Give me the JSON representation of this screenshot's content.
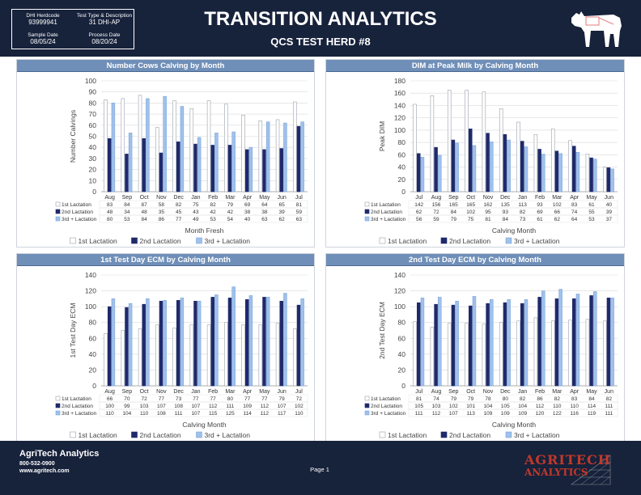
{
  "header": {
    "title": "TRANSITION ANALYTICS",
    "subtitle": "QCS TEST HERD #8",
    "herdcode_label": "DHI Herdcode",
    "herdcode": "93999941",
    "test_type_label": "Test Type & Description",
    "test_type": "31 DHI-AP",
    "sample_date_label": "Sample Date",
    "sample_date": "08/05/24",
    "process_date_label": "Process Date",
    "process_date": "08/20/24"
  },
  "footer": {
    "company": "AgriTech Analytics",
    "phone": "800-532-0900",
    "website": "www.agritech.com",
    "page": "Page 1",
    "logo_top": "AGRITECH",
    "logo_bottom": "ANALYTICS"
  },
  "colors": {
    "first": "#ffffff",
    "second": "#1f2a6b",
    "third": "#9fc1ec",
    "header_bg": "#17223b",
    "panel_title": "#6f8fb8"
  },
  "chart_data": [
    {
      "type": "bar",
      "title": "Number Cows Calving by Month",
      "xlabel": "Month Fresh",
      "ylabel": "Number Calvings",
      "ylim": [
        0,
        100
      ],
      "ytick_step": 10,
      "categories": [
        "Aug",
        "Sep",
        "Oct",
        "Nov",
        "Dec",
        "Jan",
        "Feb",
        "Mar",
        "Apr",
        "May",
        "Jun",
        "Jul"
      ],
      "series": [
        {
          "name": "1st Lactation",
          "values": [
            83,
            84,
            87,
            58,
            82,
            75,
            82,
            79,
            69,
            64,
            65,
            81
          ]
        },
        {
          "name": "2nd Lactation",
          "values": [
            48,
            34,
            48,
            35,
            45,
            43,
            42,
            42,
            38,
            38,
            39,
            59
          ]
        },
        {
          "name": "3rd + Lactation",
          "values": [
            80,
            53,
            84,
            86,
            77,
            49,
            53,
            54,
            40,
            63,
            62,
            63
          ]
        }
      ],
      "legend": "bottom",
      "grid": true
    },
    {
      "type": "bar",
      "title": "DIM at Peak Milk by Calving Month",
      "xlabel": "Calving Month",
      "ylabel": "Peak DIM",
      "ylim": [
        0,
        180
      ],
      "ytick_step": 20,
      "categories": [
        "Jul",
        "Aug",
        "Sep",
        "Oct",
        "Nov",
        "Dec",
        "Jan",
        "Feb",
        "Mar",
        "Apr",
        "May",
        "Jun"
      ],
      "series": [
        {
          "name": "1st Lactation",
          "values": [
            142,
            156,
            165,
            165,
            162,
            135,
            113,
            93,
            102,
            83,
            61,
            40
          ]
        },
        {
          "name": "2nd Lactation",
          "values": [
            62,
            72,
            84,
            102,
            95,
            93,
            82,
            69,
            66,
            74,
            55,
            39
          ]
        },
        {
          "name": "3rd + Lactation",
          "values": [
            56,
            59,
            79,
            75,
            81,
            84,
            73,
            61,
            62,
            64,
            53,
            37
          ]
        }
      ],
      "legend": "bottom",
      "grid": true
    },
    {
      "type": "bar",
      "title": "1st Test Day ECM by Calving Month",
      "xlabel": "Calving Month",
      "ylabel": "1st Test Day ECM",
      "ylim": [
        0,
        140
      ],
      "ytick_step": 20,
      "categories": [
        "Aug",
        "Sep",
        "Oct",
        "Nov",
        "Dec",
        "Jan",
        "Feb",
        "Mar",
        "Apr",
        "May",
        "Jun",
        "Jul"
      ],
      "series": [
        {
          "name": "1st Lactation",
          "values": [
            66,
            70,
            72,
            77,
            73,
            77,
            77,
            80,
            77,
            77,
            79,
            72
          ]
        },
        {
          "name": "2nd Lactation",
          "values": [
            100,
            99,
            103,
            107,
            108,
            107,
            112,
            111,
            109,
            112,
            107,
            102
          ]
        },
        {
          "name": "3rd + Lactation",
          "values": [
            110,
            104,
            110,
            108,
            111,
            107,
            115,
            125,
            114,
            112,
            117,
            110
          ]
        }
      ],
      "legend": "bottom",
      "grid": true
    },
    {
      "type": "bar",
      "title": "2nd Test Day ECM by Calving Month",
      "xlabel": "Calving Month",
      "ylabel": "2nd Test Day ECM",
      "ylim": [
        0,
        140
      ],
      "ytick_step": 20,
      "categories": [
        "Jul",
        "Aug",
        "Sep",
        "Oct",
        "Nov",
        "Dec",
        "Jan",
        "Feb",
        "Mar",
        "Apr",
        "May",
        "Jun"
      ],
      "series": [
        {
          "name": "1st Lactation",
          "values": [
            81,
            74,
            79,
            79,
            78,
            80,
            82,
            86,
            82,
            83,
            84,
            82
          ]
        },
        {
          "name": "2nd Lactation",
          "values": [
            105,
            103,
            102,
            101,
            104,
            105,
            104,
            112,
            110,
            110,
            114,
            111
          ]
        },
        {
          "name": "3rd + Lactation",
          "values": [
            111,
            112,
            107,
            113,
            109,
            109,
            109,
            120,
            122,
            116,
            119,
            111
          ]
        }
      ],
      "legend": "bottom",
      "grid": true
    }
  ]
}
